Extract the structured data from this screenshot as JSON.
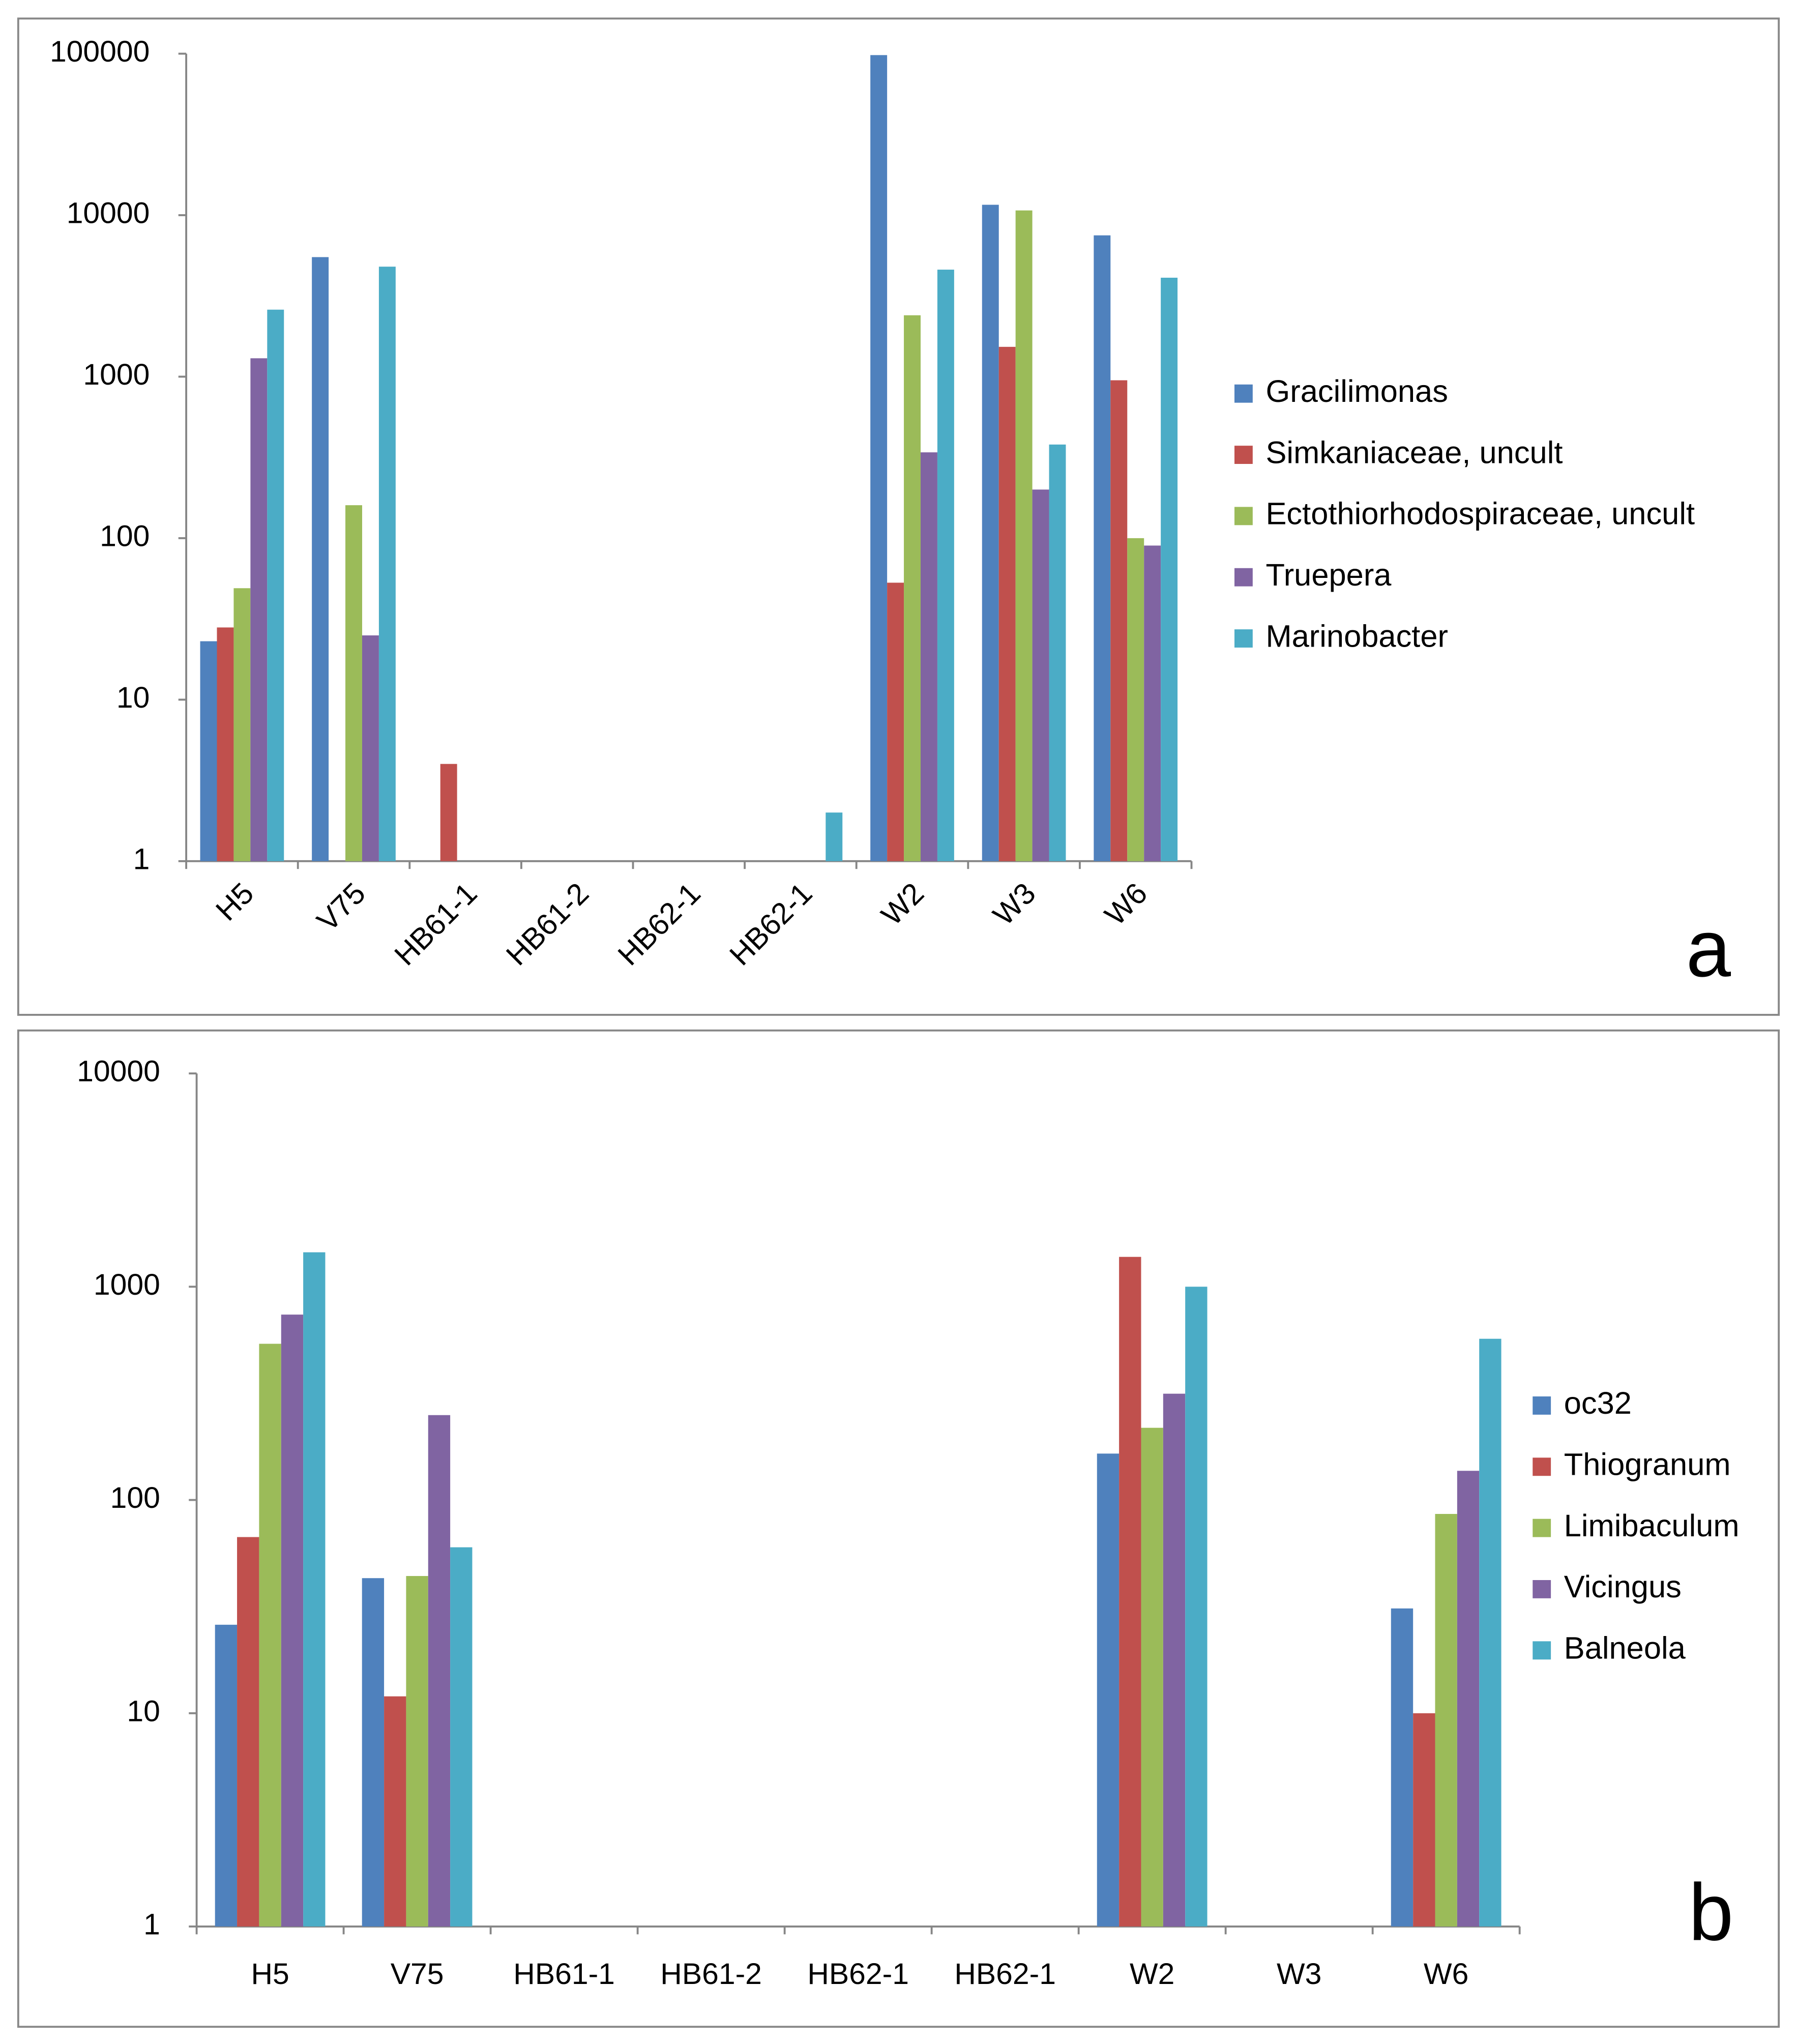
{
  "chart_data": [
    {
      "type": "bar",
      "panel_label": "a",
      "categories": [
        "H5",
        "V75",
        "HB61-1",
        "HB61-2",
        "HB62-1",
        "HB62-1",
        "W2",
        "W3",
        "W6"
      ],
      "series": [
        {
          "name": "Gracilimonas",
          "color": "#4f81bd",
          "values": [
            23,
            5500,
            null,
            null,
            null,
            null,
            98000,
            11600,
            7500
          ]
        },
        {
          "name": "Simkaniaceae, uncult",
          "color": "#c0504d",
          "values": [
            28,
            null,
            4,
            null,
            null,
            null,
            53,
            1530,
            950
          ]
        },
        {
          "name": "Ectothiorhodospiraceae, uncult",
          "color": "#9bbb59",
          "values": [
            49,
            160,
            null,
            null,
            null,
            null,
            2400,
            10700,
            100
          ]
        },
        {
          "name": "Truepera",
          "color": "#8064a2",
          "values": [
            1300,
            25,
            null,
            null,
            null,
            null,
            340,
            200,
            90
          ]
        },
        {
          "name": "Marinobacter",
          "color": "#4bacc6",
          "values": [
            2600,
            4800,
            null,
            null,
            null,
            2,
            4600,
            380,
            4100
          ]
        }
      ],
      "log_y": true,
      "grid": false,
      "legend": "right",
      "ylim": [
        1,
        100000
      ],
      "yticks": [
        1,
        10,
        100,
        1000,
        10000,
        100000
      ]
    },
    {
      "type": "bar",
      "panel_label": "b",
      "categories": [
        "H5",
        "V75",
        "HB61-1",
        "HB61-2",
        "HB62-1",
        "HB62-1",
        "W2",
        "W3",
        "W6"
      ],
      "series": [
        {
          "name": "oc32",
          "color": "#4f81bd",
          "values": [
            26,
            43,
            null,
            null,
            null,
            null,
            165,
            null,
            31
          ]
        },
        {
          "name": "Thiogranum",
          "color": "#c0504d",
          "values": [
            67,
            12,
            null,
            null,
            null,
            null,
            1380,
            null,
            10
          ]
        },
        {
          "name": "Limibaculum",
          "color": "#9bbb59",
          "values": [
            540,
            44,
            null,
            null,
            null,
            null,
            218,
            null,
            86
          ]
        },
        {
          "name": "Vicingus",
          "color": "#8064a2",
          "values": [
            740,
            250,
            null,
            null,
            null,
            null,
            315,
            null,
            137
          ]
        },
        {
          "name": "Balneola",
          "color": "#4bacc6",
          "values": [
            1450,
            60,
            null,
            null,
            null,
            null,
            1000,
            null,
            570
          ]
        }
      ],
      "log_y": true,
      "grid": false,
      "legend": "right",
      "ylim": [
        1,
        10000
      ],
      "yticks": [
        1,
        10,
        100,
        1000,
        10000
      ]
    }
  ]
}
